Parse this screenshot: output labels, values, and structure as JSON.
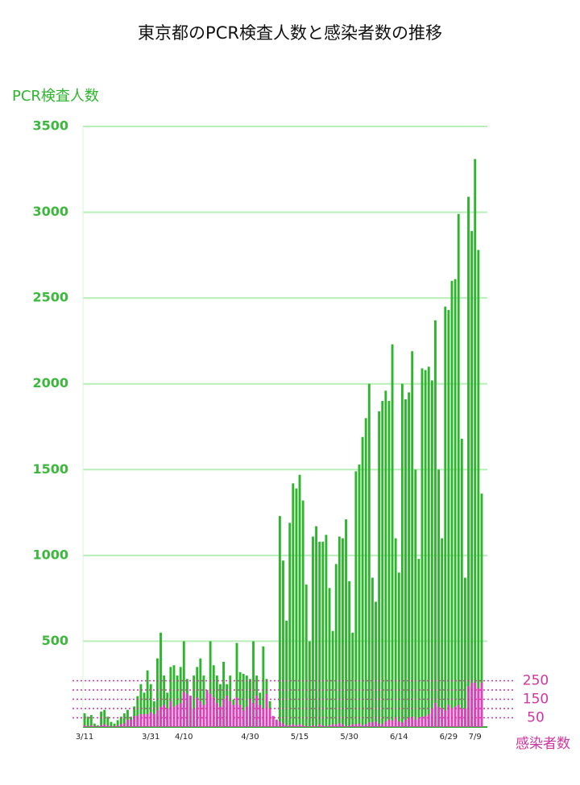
{
  "chart_data": {
    "type": "bar",
    "title": "東京都のPCR検査人数と感染者数の推移",
    "ylabel": "PCR検査人数",
    "y2label": "感染者数",
    "categories": [
      "3/11",
      null,
      null,
      null,
      null,
      null,
      null,
      null,
      null,
      null,
      null,
      null,
      null,
      null,
      null,
      null,
      null,
      null,
      null,
      null,
      "3/31",
      null,
      null,
      null,
      null,
      null,
      null,
      null,
      null,
      null,
      "4/10",
      null,
      null,
      null,
      null,
      null,
      null,
      null,
      null,
      null,
      null,
      null,
      null,
      null,
      null,
      null,
      null,
      null,
      null,
      null,
      "4/30",
      null,
      null,
      null,
      null,
      null,
      null,
      null,
      null,
      null,
      null,
      null,
      null,
      null,
      null,
      "5/15",
      null,
      null,
      null,
      null,
      null,
      null,
      null,
      null,
      null,
      null,
      null,
      null,
      null,
      null,
      "5/30",
      null,
      null,
      null,
      null,
      null,
      null,
      null,
      null,
      null,
      null,
      null,
      null,
      null,
      null,
      "6/14",
      null,
      null,
      null,
      null,
      null,
      null,
      null,
      null,
      null,
      null,
      null,
      null,
      null,
      null,
      "6/29",
      null,
      null,
      null,
      null,
      null,
      null,
      null,
      "7/9",
      null,
      null
    ],
    "series": [
      {
        "color": "#2db52d",
        "values": [
          80,
          60,
          70,
          20,
          10,
          90,
          100,
          60,
          30,
          20,
          40,
          60,
          80,
          100,
          60,
          120,
          180,
          250,
          200,
          330,
          250,
          150,
          400,
          550,
          300,
          200,
          350,
          360,
          300,
          350,
          500,
          280,
          150,
          300,
          350,
          400,
          300,
          200,
          500,
          360,
          300,
          250,
          380,
          250,
          300,
          160,
          490,
          320,
          310,
          300,
          280,
          500,
          300,
          200,
          470,
          280,
          150,
          60,
          40,
          1230,
          970,
          620,
          1190,
          1420,
          1390,
          1470,
          1320,
          830,
          500,
          1110,
          1170,
          1080,
          1080,
          1120,
          810,
          560,
          950,
          1110,
          1100,
          1210,
          850,
          550,
          1490,
          1530,
          1690,
          1800,
          2000,
          870,
          730,
          1840,
          1900,
          1960,
          1900,
          2230,
          1100,
          900,
          2000,
          1910,
          1950,
          2190,
          1500,
          980,
          2090,
          2080,
          2100,
          2020,
          2370,
          1500,
          1100,
          2450,
          2430,
          2600,
          2610,
          2990,
          1680,
          870,
          3090,
          2890,
          3310,
          2780,
          1360
        ]
      },
      {
        "color": "#e040c0",
        "axis": "y2",
        "values": [
          10,
          5,
          10,
          5,
          5,
          10,
          15,
          10,
          5,
          5,
          10,
          15,
          20,
          40,
          40,
          60,
          60,
          70,
          70,
          70,
          80,
          70,
          90,
          110,
          120,
          100,
          140,
          110,
          120,
          130,
          190,
          180,
          170,
          100,
          160,
          140,
          120,
          200,
          180,
          160,
          130,
          110,
          150,
          170,
          140,
          120,
          160,
          120,
          90,
          110,
          150,
          130,
          170,
          120,
          100,
          180,
          100,
          60,
          40,
          30,
          20,
          10,
          10,
          15,
          10,
          15,
          10,
          5,
          5,
          10,
          5,
          15,
          10,
          5,
          10,
          15,
          15,
          20,
          15,
          5,
          10,
          15,
          15,
          20,
          10,
          15,
          25,
          25,
          30,
          20,
          15,
          30,
          40,
          35,
          45,
          30,
          25,
          40,
          50,
          55,
          40,
          50,
          55,
          60,
          70,
          100,
          130,
          110,
          100,
          90,
          120,
          100,
          110,
          120,
          100,
          100,
          220,
          240,
          240,
          210,
          240
        ]
      }
    ],
    "ylim": [
      0,
      3500
    ],
    "yticks": [
      500,
      1000,
      1500,
      2000,
      2500,
      3000,
      3500
    ],
    "y2lim": [
      0,
      3243
    ],
    "y2ticks": [
      50,
      {
        "value": 100,
        "label": null
      },
      150,
      {
        "value": 200,
        "label": null
      },
      250
    ],
    "grid": true
  }
}
